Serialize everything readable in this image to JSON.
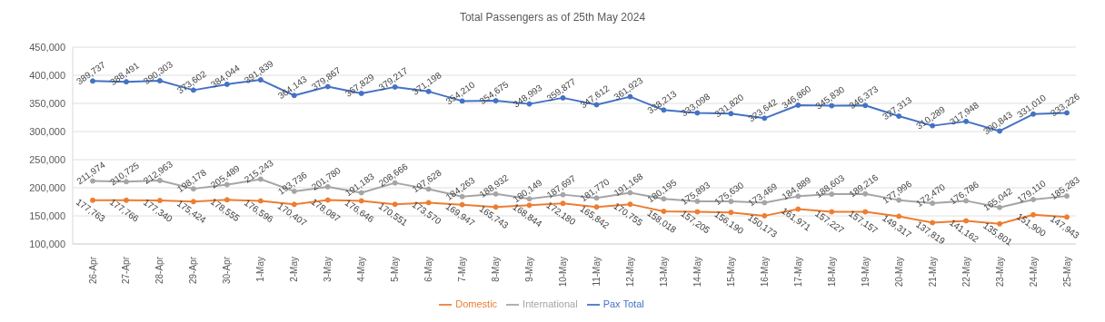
{
  "chart_data": {
    "type": "line",
    "title": "Total Passengers as of 25th May 2024",
    "categories": [
      "26-Apr",
      "27-Apr",
      "28-Apr",
      "29-Apr",
      "30-Apr",
      "1-May",
      "2-May",
      "3-May",
      "4-May",
      "5-May",
      "6-May",
      "7-May",
      "8-May",
      "9-May",
      "10-May",
      "11-May",
      "12-May",
      "13-May",
      "14-May",
      "15-May",
      "16-May",
      "17-May",
      "18-May",
      "19-May",
      "20-May",
      "21-May",
      "22-May",
      "23-May",
      "24-May",
      "25-May"
    ],
    "series": [
      {
        "name": "Pax Total",
        "color": "#4472c4",
        "values": [
          389737,
          388491,
          390303,
          373602,
          384044,
          391839,
          364143,
          379867,
          367829,
          379217,
          371198,
          354210,
          354675,
          348993,
          359877,
          347612,
          361923,
          338213,
          333098,
          331820,
          323642,
          346860,
          345830,
          346373,
          327313,
          310289,
          317948,
          300843,
          331010,
          333226
        ],
        "value_labels": [
          "389,737",
          "388,491",
          "390,303",
          "373,602",
          "384,044",
          "391,839",
          "364,143",
          "379,867",
          "367,829",
          "379,217",
          "371,198",
          "354,210",
          "354,675",
          "348,993",
          "359,877",
          "347,612",
          "361,923",
          "338,213",
          "333,098",
          "331,820",
          "323,642",
          "346,860",
          "345,830",
          "346,373",
          "327,313",
          "310,289",
          "317,948",
          "300,843",
          "331,010",
          "333,226"
        ]
      },
      {
        "name": "Domestic",
        "color": "#ed7d31",
        "values": [
          177763,
          177766,
          177340,
          175424,
          178555,
          176596,
          170407,
          178087,
          176646,
          170551,
          173570,
          169947,
          165743,
          168844,
          172180,
          165842,
          170755,
          158018,
          157205,
          156190,
          150173,
          161971,
          157227,
          157157,
          149317,
          137819,
          141162,
          135801,
          151900,
          147943
        ],
        "value_labels": [
          "177,763",
          "177,766",
          "177,340",
          "175,424",
          "178,555",
          "176,596",
          "170,407",
          "178,087",
          "176,646",
          "170,551",
          "173,570",
          "169,947",
          "165,743",
          "168,844",
          "172,180",
          "165,842",
          "170,755",
          "158,018",
          "157,205",
          "156,190",
          "150,173",
          "161,971",
          "157,227",
          "157,157",
          "149,317",
          "137,819",
          "141,162",
          "135,801",
          "151,900",
          "147,943"
        ]
      },
      {
        "name": "International",
        "color": "#a5a5a5",
        "values": [
          211974,
          210725,
          212963,
          198178,
          205489,
          215243,
          193736,
          201780,
          191183,
          208666,
          197628,
          184263,
          188932,
          180149,
          187697,
          181770,
          191168,
          180195,
          175893,
          175630,
          173469,
          184889,
          188603,
          189216,
          177996,
          172470,
          176786,
          165042,
          179110,
          185283
        ],
        "value_labels": [
          "211,974",
          "210,725",
          "212,963",
          "198,178",
          "205,489",
          "215,243",
          "193,736",
          "201,780",
          "191,183",
          "208,666",
          "197,628",
          "184,263",
          "188,932",
          "180,149",
          "187,697",
          "181,770",
          "191,168",
          "180,195",
          "175,893",
          "175,630",
          "173,469",
          "184,889",
          "188,603",
          "189,216",
          "177,996",
          "172,470",
          "176,786",
          "165,042",
          "179,110",
          "185,283"
        ]
      }
    ],
    "ylim": [
      100000,
      450000
    ],
    "yticks": [
      {
        "value": 100000,
        "label": "100,000"
      },
      {
        "value": 150000,
        "label": "150,000"
      },
      {
        "value": 200000,
        "label": "200,000"
      },
      {
        "value": 250000,
        "label": "250,000"
      },
      {
        "value": 300000,
        "label": "300,000"
      },
      {
        "value": 350000,
        "label": "350,000"
      },
      {
        "value": 400000,
        "label": "400,000"
      },
      {
        "value": 450000,
        "label": "450,000"
      }
    ],
    "grid": "y",
    "legend": "bottom",
    "marker": "circle",
    "line_style": "solid"
  }
}
